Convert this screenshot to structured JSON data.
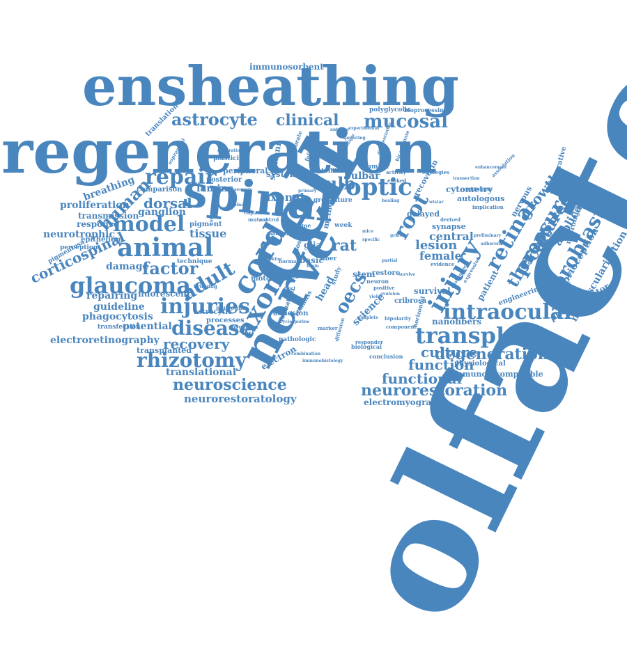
{
  "colors": {
    "word": "#4a86be",
    "background": "#ffffff"
  },
  "words": [
    {
      "t": "olfactory",
      "r": -64
    },
    {
      "t": "regeneration"
    },
    {
      "t": "ensheathing"
    },
    {
      "t": "cell",
      "r": -60
    },
    {
      "t": "spinal",
      "r": 6
    },
    {
      "t": "nerve",
      "r": -62
    },
    {
      "t": "animal"
    },
    {
      "t": "model"
    },
    {
      "t": "transplant"
    },
    {
      "t": "intraocular"
    },
    {
      "t": "injury",
      "r": -60
    },
    {
      "t": "repair"
    },
    {
      "t": "astrocyte"
    },
    {
      "t": "optic"
    },
    {
      "t": "glaucoma"
    },
    {
      "t": "injuries"
    },
    {
      "t": "disease"
    },
    {
      "t": "rhizotomy"
    },
    {
      "t": "neuroscience"
    },
    {
      "t": "neurorestoration"
    },
    {
      "t": "degeneration"
    },
    {
      "t": "functional"
    },
    {
      "t": "function"
    },
    {
      "t": "culture"
    },
    {
      "t": "recovery"
    },
    {
      "t": "axon",
      "r": -60
    },
    {
      "t": "cord",
      "r": -60
    },
    {
      "t": "adult",
      "r": -30
    },
    {
      "t": "factor"
    },
    {
      "t": "mucosal"
    },
    {
      "t": "clinical"
    },
    {
      "t": "bulb"
    },
    {
      "t": "root",
      "r": -60
    },
    {
      "t": "retinal",
      "r": -60
    },
    {
      "t": "pressure",
      "r": -60
    },
    {
      "t": "fibroblast",
      "r": -60
    },
    {
      "t": "therapy",
      "r": -60
    },
    {
      "t": "cultured",
      "r": -60
    },
    {
      "t": "dorsal"
    },
    {
      "t": "human",
      "r": -45
    },
    {
      "t": "oecs",
      "r": -60
    },
    {
      "t": "growth",
      "r": -50
    },
    {
      "t": "neurorestoratology"
    },
    {
      "t": "electroretinography"
    },
    {
      "t": "corticospinal",
      "r": -25
    },
    {
      "t": "lesion"
    },
    {
      "t": "central"
    },
    {
      "t": "rat"
    },
    {
      "t": "female"
    },
    {
      "t": "bulbar"
    },
    {
      "t": "axonal"
    },
    {
      "t": "tissue"
    },
    {
      "t": "lamina"
    },
    {
      "t": "ganglion"
    },
    {
      "t": "proliferation"
    },
    {
      "t": "neurotrophic"
    },
    {
      "t": "transmission"
    },
    {
      "t": "response"
    },
    {
      "t": "breathing",
      "r": -20
    },
    {
      "t": "potential"
    },
    {
      "t": "transplanted"
    },
    {
      "t": "translational"
    },
    {
      "t": "guideline"
    },
    {
      "t": "phagocytosis"
    },
    {
      "t": "repairing"
    },
    {
      "t": "damage"
    },
    {
      "t": "fluorescent"
    },
    {
      "t": "immunosorbent"
    },
    {
      "t": "translation",
      "r": -45
    },
    {
      "t": "application",
      "r": -60
    },
    {
      "t": "proprioception",
      "r": -60
    },
    {
      "t": "neovascularization",
      "r": -60
    },
    {
      "t": "photoreceptor",
      "r": -30
    },
    {
      "t": "microinjection",
      "r": -75
    },
    {
      "t": "engineering",
      "r": -20
    },
    {
      "t": "survival"
    },
    {
      "t": "synapse"
    },
    {
      "t": "delayed"
    },
    {
      "t": "cytometry"
    },
    {
      "t": "autologous"
    },
    {
      "t": "nanofibers"
    },
    {
      "t": "immunoincompatible"
    },
    {
      "t": "electromyography"
    },
    {
      "t": "physiological"
    },
    {
      "t": "electron",
      "r": -30
    },
    {
      "t": "science",
      "r": -45
    },
    {
      "t": "stem"
    },
    {
      "t": "restore"
    },
    {
      "t": "cribrosa"
    },
    {
      "t": "glia"
    },
    {
      "t": "basic"
    },
    {
      "t": "head",
      "r": -60
    },
    {
      "t": "system"
    },
    {
      "t": "peripheral"
    },
    {
      "t": "posterior"
    },
    {
      "t": "comparison"
    },
    {
      "t": "pigment"
    },
    {
      "t": "epithelium"
    },
    {
      "t": "perception"
    },
    {
      "t": "pigmentosa",
      "r": -30
    },
    {
      "t": "technique"
    },
    {
      "t": "astrocytic"
    },
    {
      "t": "processes"
    },
    {
      "t": "transfection"
    },
    {
      "t": "adhesion"
    },
    {
      "t": "motor"
    },
    {
      "t": "neuroglia"
    },
    {
      "t": "polyglycolic"
    },
    {
      "t": "bioprocessing"
    },
    {
      "t": "plasticity"
    },
    {
      "t": "schwann",
      "r": -80
    },
    {
      "t": "recoverin",
      "r": -60
    },
    {
      "t": "regenerative",
      "r": -75
    },
    {
      "t": "nervous",
      "r": -60
    },
    {
      "t": "patient",
      "r": -60
    },
    {
      "t": "reconstruction"
    },
    {
      "t": "group"
    },
    {
      "t": "future"
    },
    {
      "t": "rescue"
    },
    {
      "t": "number"
    },
    {
      "t": "fiber"
    },
    {
      "t": "week"
    },
    {
      "t": "neuron"
    },
    {
      "t": "positive"
    },
    {
      "t": "pathologic"
    },
    {
      "t": "biological"
    },
    {
      "t": "conclusion"
    },
    {
      "t": "responder"
    },
    {
      "t": "strategies"
    },
    {
      "t": "derived"
    },
    {
      "t": "method",
      "r": -80
    },
    {
      "t": "retinitis",
      "r": -60
    },
    {
      "t": "formation",
      "r": -70
    },
    {
      "t": "vertebrate",
      "r": -70
    },
    {
      "t": "following",
      "r": -70
    },
    {
      "t": "protein"
    },
    {
      "t": "evidence"
    },
    {
      "t": "activity"
    },
    {
      "t": "evoked"
    },
    {
      "t": "implication"
    },
    {
      "t": "horizontal",
      "r": -75
    },
    {
      "t": "population"
    },
    {
      "t": "bipolarity"
    },
    {
      "t": "component"
    },
    {
      "t": "immunohistology"
    },
    {
      "t": "combination"
    },
    {
      "t": "marker"
    },
    {
      "t": "diffusion",
      "r": -75
    },
    {
      "t": "normal"
    },
    {
      "t": "control"
    },
    {
      "t": "time"
    },
    {
      "t": "bridging"
    },
    {
      "t": "mutant"
    },
    {
      "t": "collagen"
    },
    {
      "t": "study",
      "r": -70
    },
    {
      "t": "loss",
      "r": -70
    },
    {
      "t": "structural",
      "r": -80
    },
    {
      "t": "analysis"
    },
    {
      "t": "experimental"
    },
    {
      "t": "paradigm",
      "r": -60
    },
    {
      "t": "association",
      "r": -45
    },
    {
      "t": "expression",
      "r": -60
    },
    {
      "t": "challenging",
      "r": -60
    },
    {
      "t": "avulsion"
    },
    {
      "t": "anterior"
    },
    {
      "t": "sprouting"
    },
    {
      "t": "generation"
    },
    {
      "t": "cyclosporine"
    },
    {
      "t": "suprapinal",
      "r": -60
    },
    {
      "t": "differentiation",
      "r": -70
    },
    {
      "t": "bicarbonate",
      "r": -70
    },
    {
      "t": "transection"
    },
    {
      "t": "enhancement"
    },
    {
      "t": "proliferatory"
    },
    {
      "t": "preliminary"
    },
    {
      "t": "adherent"
    },
    {
      "t": "cisplatin"
    },
    {
      "t": "healing"
    },
    {
      "t": "yield"
    },
    {
      "t": "brain"
    },
    {
      "t": "cytokine"
    },
    {
      "t": "chronic"
    },
    {
      "t": "mice"
    },
    {
      "t": "specific"
    },
    {
      "t": "treat"
    },
    {
      "t": "primary"
    },
    {
      "t": "sensory"
    },
    {
      "t": "survive"
    },
    {
      "t": "wistar"
    },
    {
      "t": "complete"
    },
    {
      "t": "partial"
    },
    {
      "t": "graft"
    },
    {
      "t": "medial"
    },
    {
      "t": "spinae"
    },
    {
      "t": "tract"
    }
  ]
}
